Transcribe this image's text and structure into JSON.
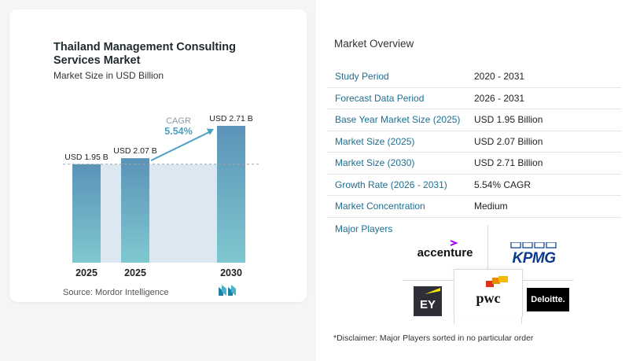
{
  "chart_data": {
    "type": "bar",
    "title": "Thailand Management Consulting Services Market",
    "subtitle": "Market Size in USD Billion",
    "categories": [
      "2025",
      "2025",
      "2030"
    ],
    "values": [
      1.95,
      2.07,
      2.71
    ],
    "data_labels": [
      "USD 1.95 B",
      "USD 2.07 B",
      "USD 2.71 B"
    ],
    "ylim": [
      0,
      2.71
    ],
    "grid": false,
    "cagr_label": "CAGR",
    "cagr_value": "5.54%",
    "colors": {
      "bar_top": "#5b93b8",
      "bar_bottom": "#7fc8d0",
      "band": "#dbe8f2",
      "arrow": "#4ba3c3"
    }
  },
  "source": "Source: Mordor Intelligence",
  "overview": {
    "title": "Market Overview",
    "rows": [
      {
        "label": "Study Period",
        "value": "2020 - 2031"
      },
      {
        "label": "Forecast Data Period",
        "value": "2026 - 2031"
      },
      {
        "label": "Base Year Market Size (2025)",
        "value": "USD 1.95 Billion"
      },
      {
        "label": "Market Size (2025)",
        "value": "USD 2.07 Billion"
      },
      {
        "label": "Market Size (2030)",
        "value": "USD 2.71 Billion"
      },
      {
        "label": "Growth Rate (2026 - 2031)",
        "value": "5.54% CAGR"
      },
      {
        "label": "Market Concentration",
        "value": "Medium"
      }
    ],
    "players_label": "Major Players",
    "players": {
      "accenture": "accenture",
      "kpmg": "KPMG",
      "ey": "EY",
      "pwc": "pwc",
      "deloitte": "Deloitte."
    }
  },
  "disclaimer": "*Disclaimer: Major Players sorted in no particular order"
}
